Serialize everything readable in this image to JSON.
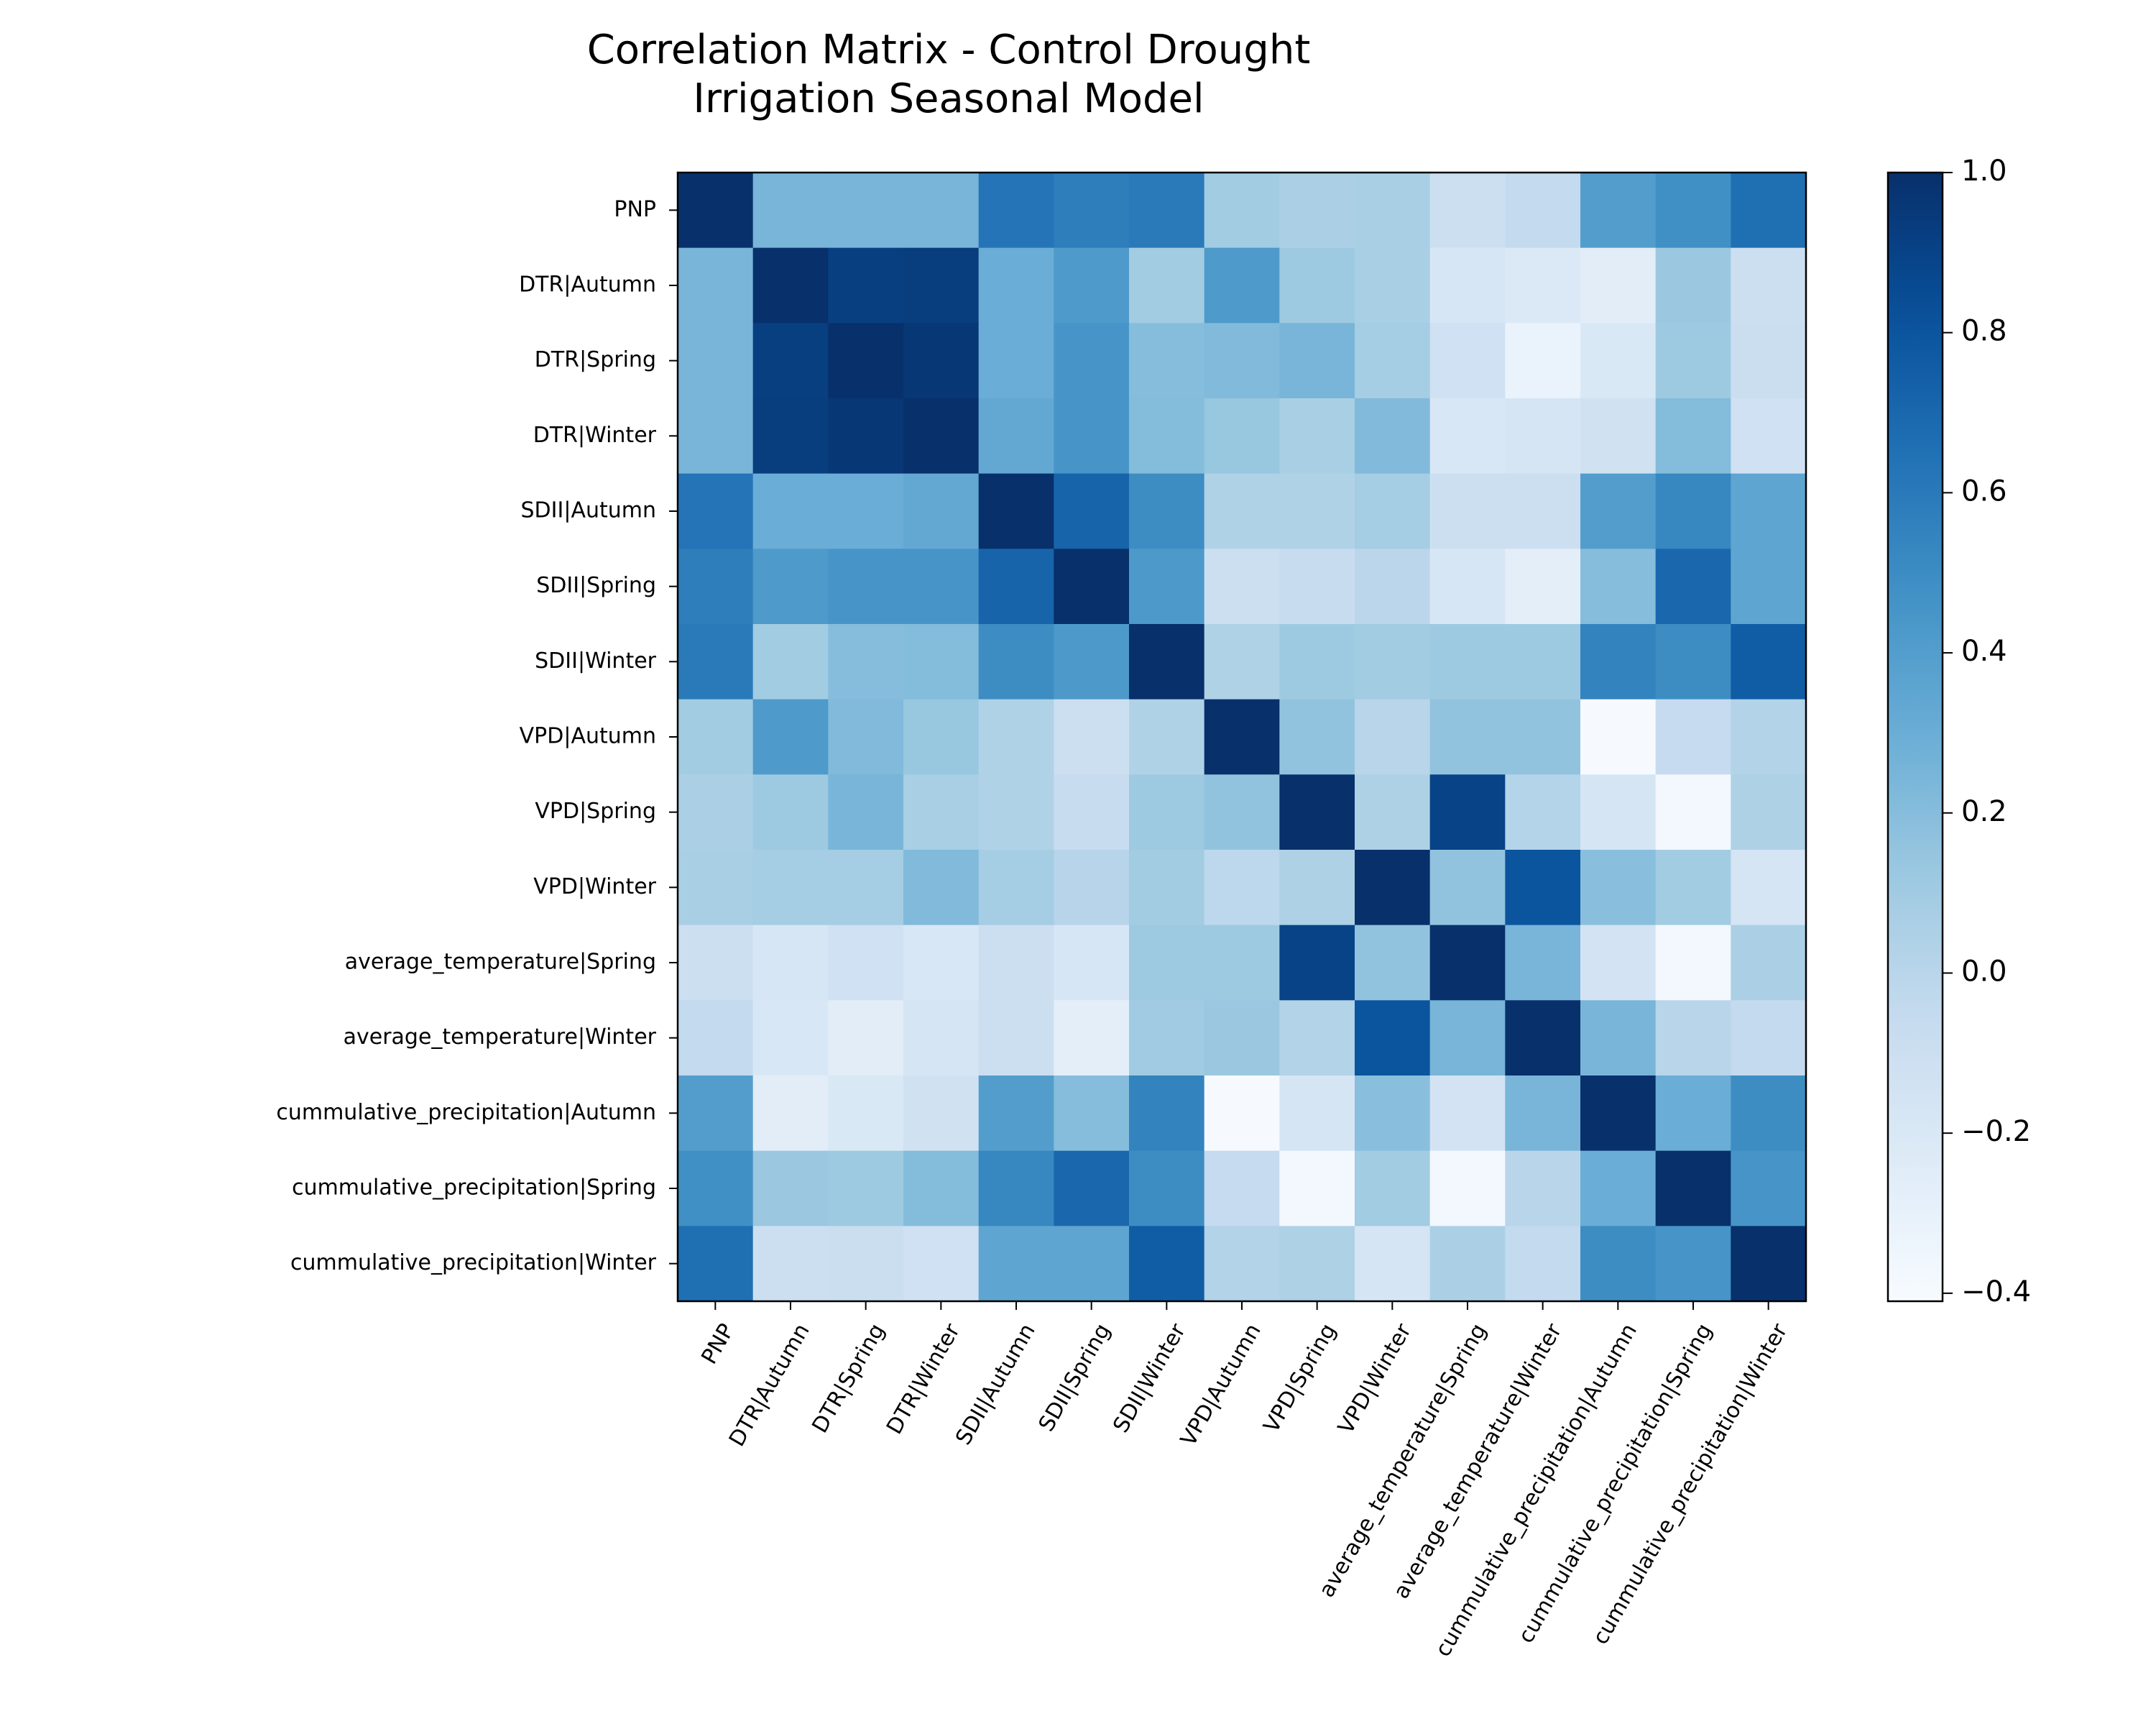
{
  "chart_data": {
    "type": "heatmap",
    "title": [
      "Correlation Matrix - Control Drought",
      "Irrigation Seasonal Model"
    ],
    "xlabel": "",
    "ylabel": "",
    "variables": [
      "PNP",
      "DTR|Autumn",
      "DTR|Spring",
      "DTR|Winter",
      "SDII|Autumn",
      "SDII|Spring",
      "SDII|Winter",
      "VPD|Autumn",
      "VPD|Spring",
      "VPD|Winter",
      "average_temperature|Spring",
      "average_temperature|Winter",
      "cummulative_precipitation|Autumn",
      "cummulative_precipitation|Spring",
      "cummulative_precipitation|Winter"
    ],
    "matrix": [
      [
        1.0,
        0.25,
        0.25,
        0.25,
        0.63,
        0.58,
        0.6,
        0.1,
        0.06,
        0.07,
        -0.1,
        -0.05,
        0.4,
        0.48,
        0.66
      ],
      [
        0.25,
        1.0,
        0.92,
        0.93,
        0.3,
        0.42,
        0.1,
        0.42,
        0.12,
        0.07,
        -0.18,
        -0.21,
        -0.26,
        0.13,
        -0.1
      ],
      [
        0.25,
        0.92,
        1.0,
        0.96,
        0.3,
        0.45,
        0.2,
        0.22,
        0.25,
        0.09,
        -0.12,
        -0.32,
        -0.2,
        0.12,
        -0.09
      ],
      [
        0.25,
        0.93,
        0.96,
        1.0,
        0.33,
        0.45,
        0.21,
        0.14,
        0.07,
        0.22,
        -0.19,
        -0.17,
        -0.13,
        0.21,
        -0.12
      ],
      [
        0.63,
        0.3,
        0.3,
        0.33,
        1.0,
        0.72,
        0.5,
        0.04,
        0.04,
        0.09,
        -0.1,
        -0.1,
        0.4,
        0.53,
        0.35
      ],
      [
        0.58,
        0.42,
        0.45,
        0.45,
        0.72,
        1.0,
        0.43,
        -0.1,
        -0.07,
        -0.01,
        -0.18,
        -0.27,
        0.2,
        0.7,
        0.35
      ],
      [
        0.6,
        0.1,
        0.2,
        0.21,
        0.5,
        0.43,
        1.0,
        0.04,
        0.12,
        0.1,
        0.12,
        0.12,
        0.55,
        0.5,
        0.76
      ],
      [
        0.1,
        0.42,
        0.22,
        0.14,
        0.04,
        -0.1,
        0.04,
        1.0,
        0.16,
        0.0,
        0.16,
        0.16,
        -0.4,
        -0.06,
        0.03
      ],
      [
        0.06,
        0.12,
        0.25,
        0.07,
        0.04,
        -0.07,
        0.12,
        0.16,
        1.0,
        0.05,
        0.9,
        0.02,
        -0.17,
        -0.38,
        0.05
      ],
      [
        0.07,
        0.09,
        0.09,
        0.22,
        0.09,
        0.01,
        0.1,
        -0.02,
        0.05,
        1.0,
        0.16,
        0.8,
        0.19,
        0.1,
        -0.17
      ],
      [
        -0.1,
        -0.18,
        -0.12,
        -0.19,
        -0.1,
        -0.18,
        0.12,
        0.12,
        0.9,
        0.16,
        1.0,
        0.25,
        -0.15,
        -0.38,
        0.06
      ],
      [
        -0.05,
        -0.19,
        -0.26,
        -0.17,
        -0.1,
        -0.27,
        0.11,
        0.13,
        0.03,
        0.8,
        0.25,
        1.0,
        0.25,
        0.0,
        -0.05
      ],
      [
        0.4,
        -0.26,
        -0.2,
        -0.13,
        0.4,
        0.2,
        0.55,
        -0.4,
        -0.17,
        0.19,
        -0.15,
        0.25,
        1.0,
        0.3,
        0.5
      ],
      [
        0.48,
        0.13,
        0.12,
        0.21,
        0.53,
        0.7,
        0.5,
        -0.06,
        -0.38,
        0.1,
        -0.38,
        0.0,
        0.3,
        1.0,
        0.45
      ],
      [
        0.66,
        -0.1,
        -0.09,
        -0.12,
        0.35,
        0.35,
        0.76,
        0.03,
        0.05,
        -0.17,
        0.06,
        -0.05,
        0.5,
        0.45,
        1.0
      ]
    ],
    "vmin": -0.41,
    "vmax": 1.0,
    "colormap": "Blues",
    "colorbar": {
      "ticks": [
        1.0,
        0.8,
        0.6,
        0.4,
        0.2,
        0.0,
        -0.2,
        -0.4
      ],
      "tick_labels": [
        "1.0",
        "0.8",
        "0.6",
        "0.4",
        "0.2",
        "0.0",
        "−0.2",
        "−0.4"
      ]
    },
    "grid": false,
    "legend": "none"
  }
}
